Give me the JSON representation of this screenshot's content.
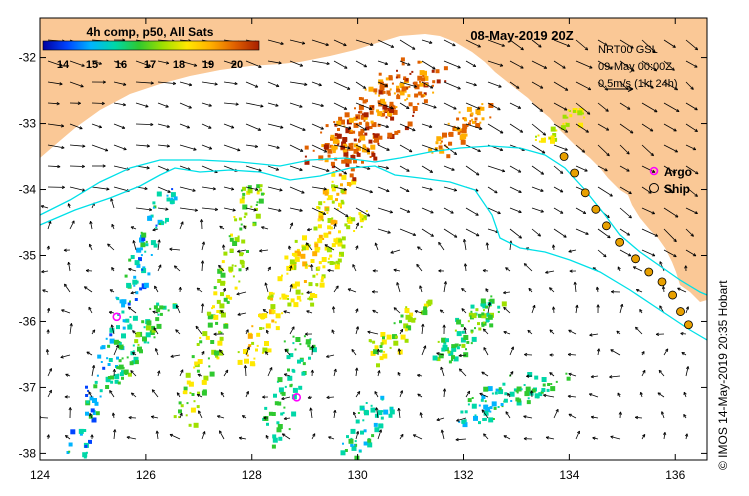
{
  "title": "08-May-2019 20Z",
  "colorbar": {
    "label": "4h comp, p50, All Sats",
    "ticks": [
      "14",
      "15",
      "16",
      "17",
      "18",
      "19",
      "20"
    ],
    "colors": [
      "#0000a0",
      "#0044ff",
      "#00b4ff",
      "#00d7a8",
      "#2fc92f",
      "#9fe000",
      "#ffe800",
      "#ffae00",
      "#e06000",
      "#a82000"
    ]
  },
  "info": {
    "product": "NRT00 GSL",
    "time": "09-May 00:00Z",
    "scale": "0.5m/s (1kt 24h)"
  },
  "legend": {
    "argo": "Argo",
    "ship": "Ship",
    "argo_color": "#ff00ff",
    "ship_color": "#e8a000"
  },
  "axes": {
    "x_ticks": [
      "124",
      "126",
      "128",
      "130",
      "132",
      "134",
      "136"
    ],
    "y_ticks": [
      "-32",
      "-33",
      "-34",
      "-35",
      "-36",
      "-37",
      "-38"
    ],
    "lon_range": [
      124,
      136.6
    ],
    "lat_range": [
      -38.1,
      -31.4
    ]
  },
  "colors": {
    "land": "#fac896",
    "contour": "#00e0e8",
    "arrows": "#000000"
  },
  "argo_floats": [
    {
      "lon": 125.45,
      "lat": -35.93
    },
    {
      "lon": 128.85,
      "lat": -37.15
    }
  ],
  "ship_track": [
    [
      133.9,
      -33.5
    ],
    [
      134.1,
      -33.75
    ],
    [
      134.3,
      -34.05
    ],
    [
      134.5,
      -34.3
    ],
    [
      134.7,
      -34.55
    ],
    [
      134.95,
      -34.8
    ],
    [
      135.25,
      -35.05
    ],
    [
      135.5,
      -35.25
    ],
    [
      135.75,
      -35.4
    ],
    [
      135.95,
      -35.6
    ],
    [
      136.1,
      -35.85
    ],
    [
      136.25,
      -36.05
    ]
  ],
  "credit": "© IMOS 14-May-2019 20:35 Hobart"
}
